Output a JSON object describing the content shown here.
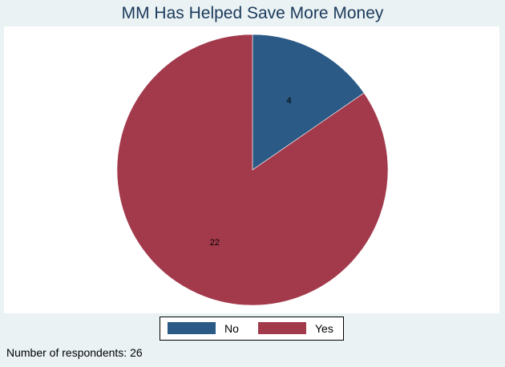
{
  "chart_data": {
    "type": "pie",
    "title": "MM Has Helped Save More Money",
    "categories": [
      "No",
      "Yes"
    ],
    "values": [
      4,
      22
    ],
    "colors": [
      "#2a5a85",
      "#a33a4c"
    ],
    "data_labels": [
      "4",
      "22"
    ],
    "legend": {
      "placement": "bottom",
      "entries": [
        "No",
        "Yes"
      ]
    },
    "note": "Number of respondents: 26"
  }
}
